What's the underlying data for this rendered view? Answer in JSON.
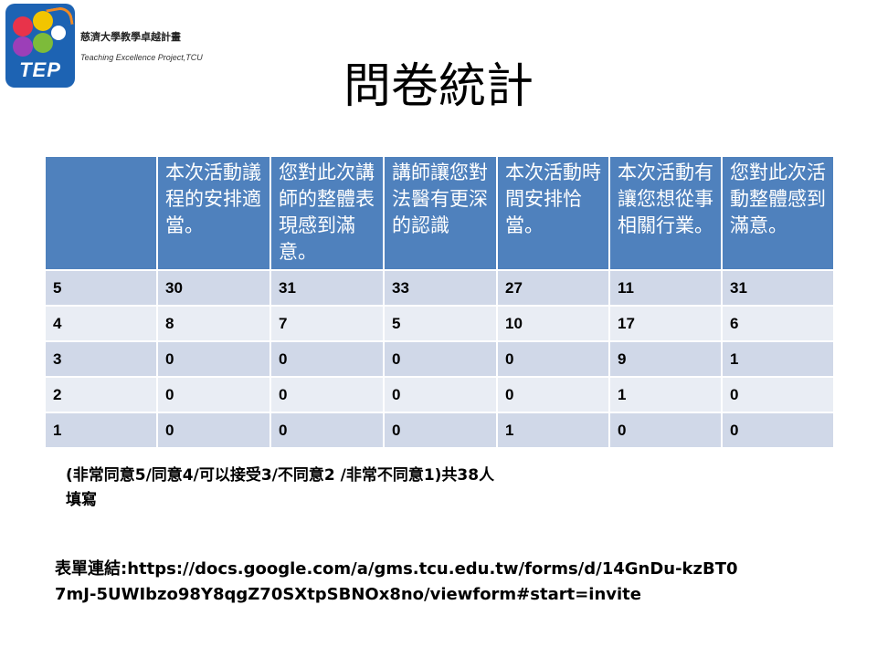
{
  "logo": {
    "mark_text": "TEP",
    "name_cn": "慈濟大學教學卓越計畫",
    "name_en": "Teaching Excellence Project,TCU"
  },
  "slide": {
    "title": "問卷統計"
  },
  "table": {
    "corner": "",
    "columns": [
      "本次活動議程的安排適當。",
      "您對此次講師的整體表現感到滿意。",
      "講師讓您對法醫有更深的認識",
      "本次活動時間安排恰當。",
      "本次活動有讓您想從事相關行業。",
      "您對此次活動整體感到滿意。"
    ],
    "rows": [
      {
        "label": "5",
        "values": [
          "30",
          "31",
          "33",
          "27",
          "11",
          "31"
        ]
      },
      {
        "label": "4",
        "values": [
          "8",
          "7",
          "5",
          "10",
          "17",
          "6"
        ]
      },
      {
        "label": "3",
        "values": [
          "0",
          "0",
          "0",
          "0",
          "9",
          "1"
        ]
      },
      {
        "label": "2",
        "values": [
          "0",
          "0",
          "0",
          "0",
          "1",
          "0"
        ]
      },
      {
        "label": "1",
        "values": [
          "0",
          "0",
          "0",
          "1",
          "0",
          "0"
        ]
      }
    ]
  },
  "note": "(非常同意5/同意4/可以接受3/不同意2 /非常不同意1)共38人填寫",
  "form_link": "表單連結:https://docs.google.com/a/gms.tcu.edu.tw/forms/d/14GnDu-kzBT07mJ-5UWIbzo98Y8qgZ70SXtpSBNOx8no/viewform#start=invite",
  "colors": {
    "header_bg": "#4f81bd",
    "row_dark": "#d0d8e8",
    "row_light": "#e9edf4",
    "logo_bg": "#1d63b3"
  }
}
